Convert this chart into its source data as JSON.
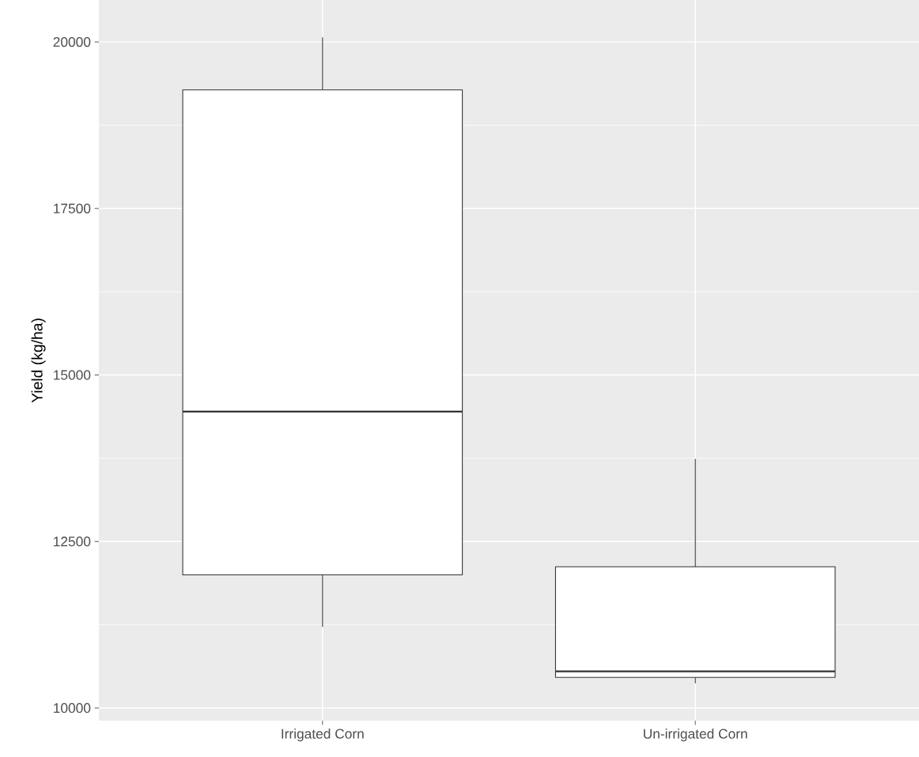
{
  "chart_data": {
    "type": "box",
    "ylabel": "Yield (kg/ha)",
    "categories": [
      "Irrigated Corn",
      "Un-irrigated Corn"
    ],
    "boxes": [
      {
        "low": 11220,
        "q1": 12000,
        "median": 14450,
        "q3": 19280,
        "high": 20070
      },
      {
        "low": 10370,
        "q1": 10460,
        "median": 10550,
        "q3": 12120,
        "high": 13740
      }
    ],
    "color": "#333333",
    "ylim": [
      9810,
      20630
    ],
    "yticks": [
      10000,
      12500,
      15000,
      17500,
      20000
    ],
    "grid": true
  }
}
